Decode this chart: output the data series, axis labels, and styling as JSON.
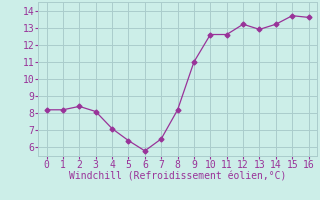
{
  "x": [
    0,
    1,
    2,
    3,
    4,
    5,
    6,
    7,
    8,
    9,
    10,
    11,
    12,
    13,
    14,
    15,
    16
  ],
  "y": [
    8.2,
    8.2,
    8.4,
    8.1,
    7.1,
    6.4,
    5.8,
    6.5,
    8.2,
    11.0,
    12.6,
    12.6,
    13.2,
    12.9,
    13.2,
    13.7,
    13.6
  ],
  "line_color": "#993399",
  "marker": "D",
  "marker_size": 2.5,
  "bg_color": "#cceee8",
  "grid_color": "#aacccc",
  "text_color": "#993399",
  "xlabel": "Windchill (Refroidissement éolien,°C)",
  "xlim": [
    -0.5,
    16.5
  ],
  "ylim": [
    5.5,
    14.5
  ],
  "yticks": [
    6,
    7,
    8,
    9,
    10,
    11,
    12,
    13,
    14
  ],
  "xticks": [
    0,
    1,
    2,
    3,
    4,
    5,
    6,
    7,
    8,
    9,
    10,
    11,
    12,
    13,
    14,
    15,
    16
  ],
  "xlabel_fontsize": 7,
  "tick_fontsize": 7
}
